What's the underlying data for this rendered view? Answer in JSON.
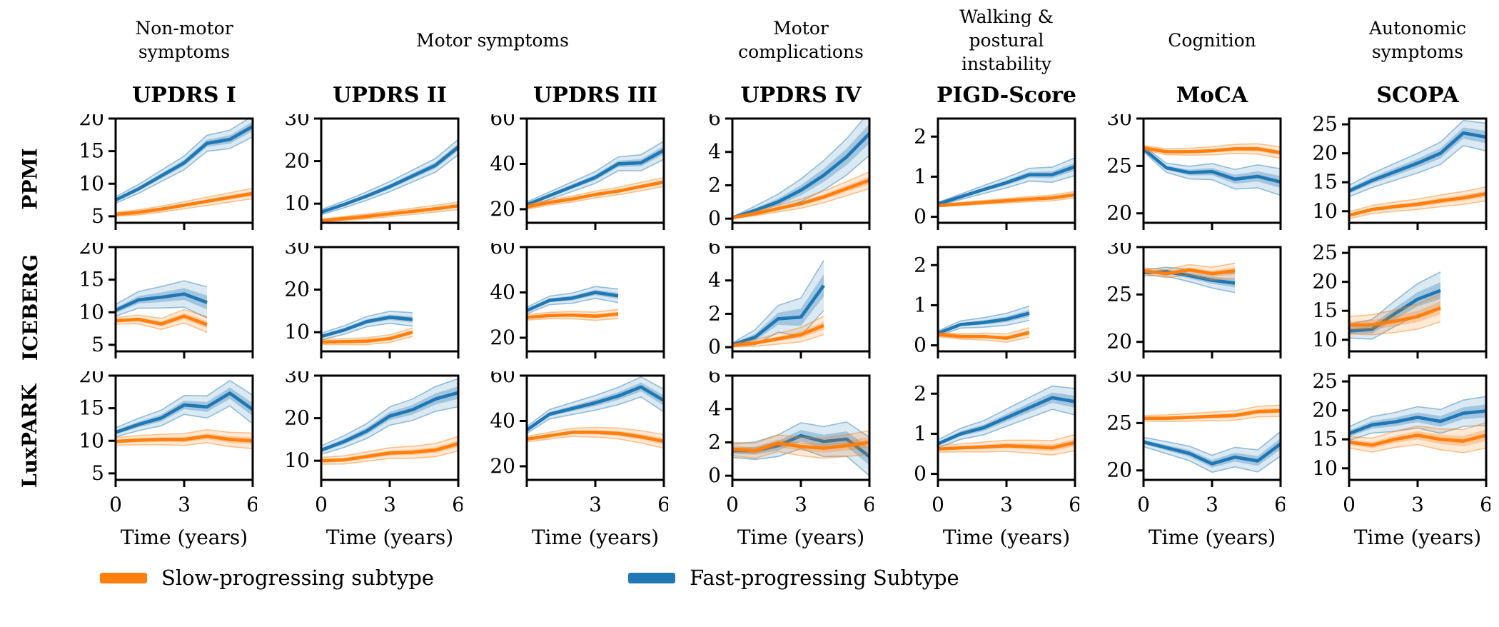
{
  "figure": {
    "row_labels": [
      "PPMI",
      "ICEBERG",
      "LuxPARK"
    ],
    "groups": [
      {
        "key": "non-motor-symptoms",
        "label_lines": [
          "Non-motor",
          "symptoms"
        ],
        "span": 1
      },
      {
        "key": "motor-symptoms",
        "label_lines": [
          "Motor symptoms"
        ],
        "span": 2
      },
      {
        "key": "motor-complications",
        "label_lines": [
          "Motor",
          "complications"
        ],
        "span": 1
      },
      {
        "key": "walking-postural-instability",
        "label_lines": [
          "Walking &",
          "postural instability"
        ],
        "span": 1
      },
      {
        "key": "cognition",
        "label_lines": [
          "Cognition"
        ],
        "span": 1
      },
      {
        "key": "autonomic-symptoms",
        "label_lines": [
          "Autonomic",
          "symptoms"
        ],
        "span": 1
      }
    ],
    "legend": {
      "slow_label": "Slow-progressing subtype",
      "fast_label": "Fast-progressing Subtype"
    }
  },
  "chart_data": {
    "type": "line",
    "x_label": "Time (years)",
    "x_ticks": [
      0,
      3,
      6
    ],
    "xlim": [
      0,
      6
    ],
    "grid": false,
    "legend_position": "bottom",
    "cohorts": [
      "PPMI",
      "ICEBERG",
      "LuxPARK"
    ],
    "series_colors": {
      "slow": "#ff7f0e",
      "fast": "#1f77b4"
    },
    "series_labels": {
      "slow": "Slow-progressing subtype",
      "fast": "Fast-progressing Subtype"
    },
    "columns": [
      {
        "key": "updrs-i",
        "title": "UPDRS I",
        "ylim": [
          4,
          20
        ],
        "yticks": [
          5,
          10,
          15,
          20
        ],
        "x_tick_labels": [
          "0",
          "3",
          "6"
        ],
        "panels": {
          "PPMI": {
            "x": [
              0,
              1,
              2,
              3,
              4,
              5,
              6
            ],
            "fast": {
              "y": [
                7.5,
                9.2,
                11.2,
                13.2,
                16.2,
                16.8,
                18.8
              ],
              "band": [
                0.5,
                1.6
              ]
            },
            "slow": {
              "y": [
                5.3,
                5.6,
                6.1,
                6.7,
                7.3,
                7.9,
                8.5
              ],
              "band": [
                0.3,
                0.8
              ]
            }
          },
          "ICEBERG": {
            "x": [
              0,
              1,
              2,
              3,
              4
            ],
            "fast": {
              "y": [
                10.3,
                11.9,
                12.3,
                12.8,
                11.5
              ],
              "band": [
                0.9,
                2.4
              ]
            },
            "slow": {
              "y": [
                8.7,
                8.9,
                8.2,
                9.4,
                8.1
              ],
              "band": [
                0.5,
                1.2
              ]
            }
          },
          "LuxPARK": {
            "x": [
              0,
              1,
              2,
              3,
              4,
              5,
              6
            ],
            "fast": {
              "y": [
                11.3,
                12.5,
                13.5,
                15.5,
                15.2,
                17.3,
                14.8
              ],
              "band": [
                0.7,
                2.2
              ]
            },
            "slow": {
              "y": [
                9.9,
                10.1,
                10.2,
                10.2,
                10.7,
                10.2,
                10.0
              ],
              "band": [
                0.6,
                1.2
              ]
            }
          }
        }
      },
      {
        "key": "updrs-ii",
        "title": "UPDRS II",
        "ylim": [
          5.5,
          30
        ],
        "yticks": [
          10,
          20,
          30
        ],
        "x_tick_labels": [
          "0",
          "3",
          "6"
        ],
        "panels": {
          "PPMI": {
            "x": [
              0,
              1,
              2,
              3,
              4,
              5,
              6
            ],
            "fast": {
              "y": [
                8.0,
                9.8,
                11.8,
                14.0,
                16.5,
                19.0,
                23.3
              ],
              "band": [
                0.6,
                1.8
              ]
            },
            "slow": {
              "y": [
                6.0,
                6.5,
                7.0,
                7.6,
                8.2,
                8.8,
                9.5
              ],
              "band": [
                0.4,
                0.9
              ]
            }
          },
          "ICEBERG": {
            "x": [
              0,
              1,
              2,
              3,
              4
            ],
            "fast": {
              "y": [
                9.0,
                10.5,
                12.5,
                13.5,
                13.0
              ],
              "band": [
                0.8,
                1.6
              ]
            },
            "slow": {
              "y": [
                7.7,
                7.8,
                7.9,
                8.5,
                10.0
              ],
              "band": [
                0.6,
                1.0
              ]
            }
          },
          "LuxPARK": {
            "x": [
              0,
              1,
              2,
              3,
              4,
              5,
              6
            ],
            "fast": {
              "y": [
                12.5,
                14.5,
                17.0,
                20.5,
                22.0,
                24.5,
                26.0
              ],
              "band": [
                1.0,
                3.3
              ]
            },
            "slow": {
              "y": [
                10.0,
                10.2,
                11.0,
                11.8,
                12.0,
                12.5,
                14.0
              ],
              "band": [
                0.8,
                1.7
              ]
            }
          }
        }
      },
      {
        "key": "updrs-iii",
        "title": "UPDRS III",
        "ylim": [
          14,
          60
        ],
        "yticks": [
          20,
          40,
          60
        ],
        "x_tick_labels": [
          "",
          "3",
          "6"
        ],
        "panels": {
          "PPMI": {
            "x": [
              0,
              1,
              2,
              3,
              4,
              5,
              6
            ],
            "fast": {
              "y": [
                22,
                26,
                30,
                34,
                40,
                40.5,
                46
              ],
              "band": [
                1.2,
                4.0
              ]
            },
            "slow": {
              "y": [
                21,
                23,
                24.5,
                26.5,
                28,
                30,
                32
              ],
              "band": [
                1.0,
                2.0
              ]
            }
          },
          "ICEBERG": {
            "x": [
              0,
              1,
              2,
              3,
              4
            ],
            "fast": {
              "y": [
                32,
                36.5,
                37.5,
                40,
                38.5
              ],
              "band": [
                1.5,
                3.0
              ]
            },
            "slow": {
              "y": [
                29,
                29.8,
                30,
                29.5,
                30.5
              ],
              "band": [
                1.2,
                2.0
              ]
            }
          },
          "LuxPARK": {
            "x": [
              0,
              1,
              2,
              3,
              4,
              5,
              6
            ],
            "fast": {
              "y": [
                36,
                43,
                45.5,
                48,
                51,
                55,
                49
              ],
              "band": [
                1.5,
                5.0
              ]
            },
            "slow": {
              "y": [
                32,
                33.5,
                35,
                35,
                34.5,
                33,
                31
              ],
              "band": [
                1.2,
                3.0
              ]
            }
          }
        }
      },
      {
        "key": "updrs-iv",
        "title": "UPDRS IV",
        "ylim": [
          -0.25,
          6
        ],
        "yticks": [
          0,
          2,
          4,
          6
        ],
        "x_tick_labels": [
          "0",
          "3",
          "6"
        ],
        "panels": {
          "PPMI": {
            "x": [
              0,
              1,
              2,
              3,
              4,
              5,
              6
            ],
            "fast": {
              "y": [
                0.05,
                0.5,
                1.0,
                1.7,
                2.6,
                3.7,
                5.1
              ],
              "band": [
                0.05,
                1.3
              ]
            },
            "slow": {
              "y": [
                0.05,
                0.3,
                0.6,
                0.9,
                1.3,
                1.8,
                2.3
              ],
              "band": [
                0.05,
                0.5
              ]
            }
          },
          "ICEBERG": {
            "x": [
              0,
              1,
              2,
              3,
              4
            ],
            "fast": {
              "y": [
                0.15,
                0.6,
                1.7,
                1.8,
                3.7
              ],
              "band": [
                0.1,
                1.5
              ]
            },
            "slow": {
              "y": [
                0.1,
                0.25,
                0.5,
                0.75,
                1.3
              ],
              "band": [
                0.08,
                0.55
              ]
            }
          },
          "LuxPARK": {
            "x": [
              0,
              1,
              2,
              3,
              4,
              5,
              6
            ],
            "fast": {
              "y": [
                1.5,
                1.5,
                1.8,
                2.4,
                2.05,
                2.2,
                1.15
              ],
              "band": [
                0.4,
                1.15
              ]
            },
            "slow": {
              "y": [
                1.6,
                1.5,
                1.95,
                1.75,
                1.65,
                1.8,
                2.0
              ],
              "band": [
                0.4,
                0.7
              ]
            }
          }
        }
      },
      {
        "key": "pigd-score",
        "title": "PIGD-Score",
        "ylim": [
          -0.15,
          2.45
        ],
        "yticks": [
          0,
          1,
          2
        ],
        "x_tick_labels": [
          "0",
          "3",
          "6"
        ],
        "panels": {
          "PPMI": {
            "x": [
              0,
              1,
              2,
              3,
              4,
              5,
              6
            ],
            "fast": {
              "y": [
                0.32,
                0.5,
                0.68,
                0.85,
                1.05,
                1.05,
                1.25
              ],
              "band": [
                0.04,
                0.22
              ]
            },
            "slow": {
              "y": [
                0.28,
                0.32,
                0.36,
                0.4,
                0.44,
                0.47,
                0.55
              ],
              "band": [
                0.03,
                0.08
              ]
            }
          },
          "ICEBERG": {
            "x": [
              0,
              1,
              2,
              3,
              4
            ],
            "fast": {
              "y": [
                0.3,
                0.52,
                0.57,
                0.65,
                0.8
              ],
              "band": [
                0.06,
                0.18
              ]
            },
            "slow": {
              "y": [
                0.27,
                0.22,
                0.22,
                0.18,
                0.32
              ],
              "band": [
                0.05,
                0.12
              ]
            }
          },
          "LuxPARK": {
            "x": [
              0,
              1,
              2,
              3,
              4,
              5,
              6
            ],
            "fast": {
              "y": [
                0.75,
                1.0,
                1.15,
                1.4,
                1.65,
                1.9,
                1.8
              ],
              "band": [
                0.1,
                0.33
              ]
            },
            "slow": {
              "y": [
                0.62,
                0.65,
                0.67,
                0.7,
                0.68,
                0.65,
                0.78
              ],
              "band": [
                0.08,
                0.2
              ]
            }
          }
        }
      },
      {
        "key": "moca",
        "title": "MoCA",
        "ylim": [
          19,
          30
        ],
        "yticks": [
          20,
          25,
          30
        ],
        "x_tick_labels": [
          "0",
          "3",
          "6"
        ],
        "panels": {
          "PPMI": {
            "x": [
              0,
              1,
              2,
              3,
              4,
              5,
              6
            ],
            "fast": {
              "y": [
                26.8,
                24.8,
                24.3,
                24.4,
                23.6,
                23.9,
                23.3
              ],
              "band": [
                0.3,
                1.4
              ]
            },
            "slow": {
              "y": [
                26.9,
                26.5,
                26.5,
                26.6,
                26.8,
                26.8,
                26.4
              ],
              "band": [
                0.25,
                0.6
              ]
            }
          },
          "ICEBERG": {
            "x": [
              0,
              1,
              2,
              3,
              4
            ],
            "fast": {
              "y": [
                27.3,
                27.4,
                27.0,
                26.5,
                26.2
              ],
              "band": [
                0.3,
                1.0
              ]
            },
            "slow": {
              "y": [
                27.5,
                27.2,
                27.6,
                27.2,
                27.5
              ],
              "band": [
                0.3,
                0.8
              ]
            }
          },
          "LuxPARK": {
            "x": [
              0,
              1,
              2,
              3,
              4,
              5,
              6
            ],
            "fast": {
              "y": [
                23.0,
                22.4,
                21.8,
                20.7,
                21.4,
                21.0,
                22.8
              ],
              "band": [
                0.5,
                1.3
              ]
            },
            "slow": {
              "y": [
                25.5,
                25.5,
                25.6,
                25.7,
                25.8,
                26.2,
                26.3
              ],
              "band": [
                0.3,
                0.6
              ]
            }
          }
        }
      },
      {
        "key": "scopa",
        "title": "SCOPA",
        "ylim": [
          8,
          26
        ],
        "yticks": [
          10,
          15,
          20,
          25
        ],
        "x_tick_labels": [
          "0",
          "3",
          "6"
        ],
        "panels": {
          "PPMI": {
            "x": [
              0,
              1,
              2,
              3,
              4,
              5,
              6
            ],
            "fast": {
              "y": [
                13.5,
                15.3,
                16.8,
                18.3,
                20.0,
                23.5,
                22.8
              ],
              "band": [
                1.0,
                2.4
              ]
            },
            "slow": {
              "y": [
                9.3,
                10.3,
                10.8,
                11.2,
                11.8,
                12.3,
                13.0
              ],
              "band": [
                0.6,
                1.2
              ]
            }
          },
          "ICEBERG": {
            "x": [
              0,
              1,
              2,
              3,
              4
            ],
            "fast": {
              "y": [
                11.5,
                11.8,
                14.5,
                17.0,
                18.5
              ],
              "band": [
                1.2,
                3.2
              ]
            },
            "slow": {
              "y": [
                12.5,
                12.6,
                13.2,
                14.0,
                15.5
              ],
              "band": [
                1.5,
                2.4
              ]
            }
          },
          "LuxPARK": {
            "x": [
              0,
              1,
              2,
              3,
              4,
              5,
              6
            ],
            "fast": {
              "y": [
                16.0,
                17.5,
                18.0,
                18.8,
                18.1,
                19.5,
                19.9
              ],
              "band": [
                1.2,
                2.5
              ]
            },
            "slow": {
              "y": [
                14.5,
                14.0,
                15.0,
                15.7,
                15.0,
                14.7,
                15.7
              ],
              "band": [
                1.0,
                2.2
              ]
            }
          }
        }
      }
    ]
  }
}
